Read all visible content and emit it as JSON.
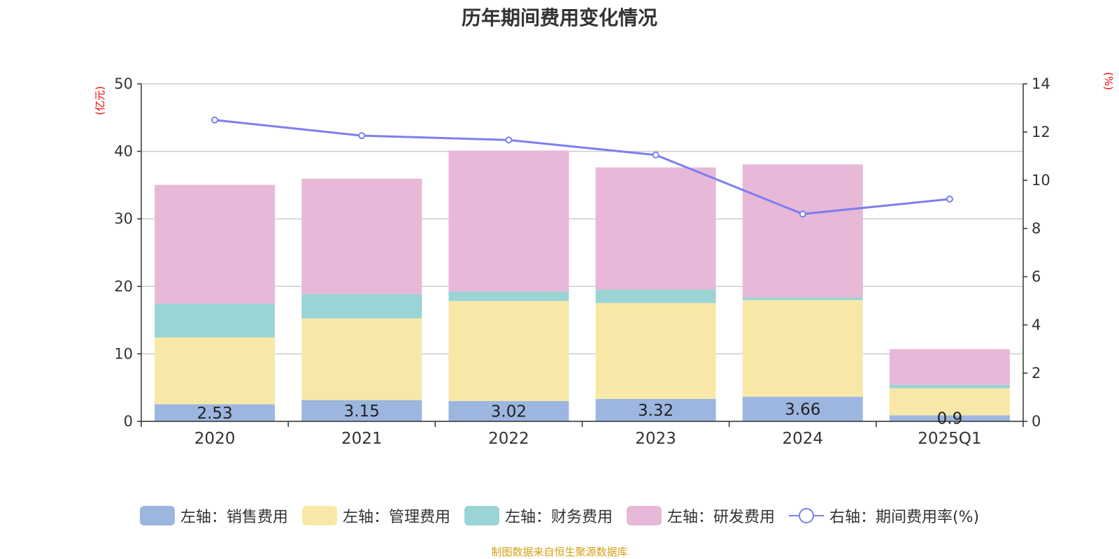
{
  "chart_data": {
    "type": "bar",
    "title": "历年期间费用变化情况",
    "categories": [
      "2020",
      "2021",
      "2022",
      "2023",
      "2024",
      "2025Q1"
    ],
    "series": [
      {
        "name": "左轴：销售费用",
        "axis": "left",
        "color": "#9db6e0",
        "values": [
          2.53,
          3.15,
          3.02,
          3.32,
          3.66,
          0.9
        ]
      },
      {
        "name": "左轴：管理费用",
        "axis": "left",
        "color": "#f8e8a8",
        "values": [
          9.9,
          12.1,
          14.8,
          14.2,
          14.3,
          4.0
        ]
      },
      {
        "name": "左轴：财务费用",
        "axis": "left",
        "color": "#9bd4d4",
        "values": [
          5.0,
          3.6,
          1.4,
          2.0,
          0.4,
          0.5
        ]
      },
      {
        "name": "左轴：研发费用",
        "axis": "left",
        "color": "#e8b8d8",
        "values": [
          17.6,
          17.1,
          20.9,
          18.1,
          19.7,
          5.3
        ]
      }
    ],
    "line_series": {
      "name": "右轴：期间费用率(%)",
      "axis": "right",
      "color": "#7b7ff0",
      "values": [
        12.5,
        11.85,
        11.67,
        11.05,
        8.6,
        9.22
      ]
    },
    "data_labels": [
      "2.53",
      "3.15",
      "3.02",
      "3.32",
      "3.66",
      "0.9"
    ],
    "y_left": {
      "label": "(亿元)",
      "ylim": [
        0,
        50
      ],
      "ticks": [
        "0",
        "10",
        "20",
        "30",
        "40",
        "50"
      ]
    },
    "y_right": {
      "label": "(%)",
      "ylim": [
        0,
        14
      ],
      "ticks": [
        "0",
        "2",
        "4",
        "6",
        "8",
        "10",
        "12",
        "14"
      ]
    },
    "grid": true,
    "legend_position": "bottom",
    "source": "制图数据来自恒生聚源数据库"
  }
}
